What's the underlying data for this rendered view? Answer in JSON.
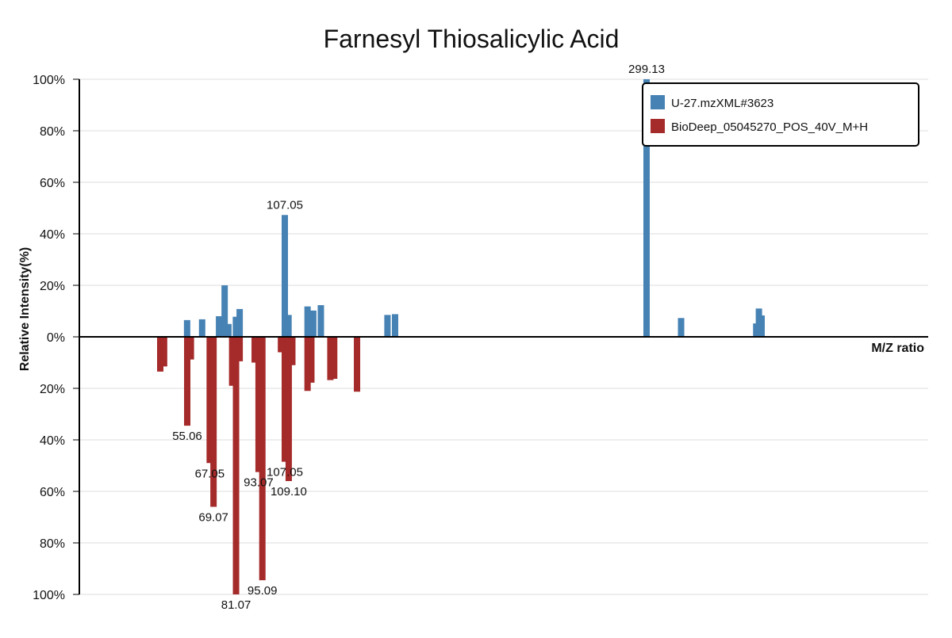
{
  "chart_data": {
    "type": "bar",
    "title": "Farnesyl Thiosalicylic Acid",
    "xlabel": "M/Z ratio",
    "ylabel": "Relative Intensity(%)",
    "ylim": [
      -100,
      100
    ],
    "y_ticks": [
      100,
      80,
      60,
      40,
      20,
      0,
      -20,
      -40,
      -60,
      -80,
      -100
    ],
    "y_tick_labels": [
      "100%",
      "80%",
      "60%",
      "40%",
      "20%",
      "0%",
      "20%",
      "40%",
      "60%",
      "80%",
      "100%"
    ],
    "xlim": [
      25,
      340
    ],
    "grid": true,
    "legend_position": "top-right",
    "series": [
      {
        "name": "U-27.mzXML#3623",
        "color": "#4682b4",
        "direction": "up",
        "peaks": [
          {
            "mz": 55.0,
            "value": 6.5
          },
          {
            "mz": 63.0,
            "value": 6.8
          },
          {
            "mz": 72.0,
            "value": 8.0
          },
          {
            "mz": 75.0,
            "value": 20.0
          },
          {
            "mz": 77.0,
            "value": 5.0
          },
          {
            "mz": 81.0,
            "value": 7.8
          },
          {
            "mz": 83.0,
            "value": 10.8
          },
          {
            "mz": 107.05,
            "value": 47.3,
            "label": "107.05"
          },
          {
            "mz": 109.0,
            "value": 8.5
          },
          {
            "mz": 119.0,
            "value": 11.8
          },
          {
            "mz": 122.0,
            "value": 10.2
          },
          {
            "mz": 126.0,
            "value": 12.3
          },
          {
            "mz": 161.0,
            "value": 8.5
          },
          {
            "mz": 165.0,
            "value": 8.8
          },
          {
            "mz": 299.13,
            "value": 100,
            "label": "299.13"
          },
          {
            "mz": 312.0,
            "value": 7.3
          },
          {
            "mz": 340.0,
            "value": 5.2
          },
          {
            "mz": 341.0,
            "value": 11.0
          },
          {
            "mz": 342.0,
            "value": 8.3
          }
        ]
      },
      {
        "name": "BioDeep_05045270_POS_40V_M+H",
        "color": "#a52a2a",
        "direction": "down",
        "peaks": [
          {
            "mz": 41.0,
            "value": 13.5
          },
          {
            "mz": 43.0,
            "value": 11.5
          },
          {
            "mz": 55.06,
            "value": 34.5,
            "label": "55.06"
          },
          {
            "mz": 57.0,
            "value": 8.8
          },
          {
            "mz": 67.05,
            "value": 49.0,
            "label": "67.05"
          },
          {
            "mz": 69.07,
            "value": 66.0,
            "label": "69.07"
          },
          {
            "mz": 79.0,
            "value": 19.0
          },
          {
            "mz": 81.07,
            "value": 100,
            "label": "81.07"
          },
          {
            "mz": 83.0,
            "value": 9.5
          },
          {
            "mz": 91.0,
            "value": 10.0
          },
          {
            "mz": 93.07,
            "value": 52.5,
            "label": "93.07"
          },
          {
            "mz": 95.09,
            "value": 94.5,
            "label": "95.09"
          },
          {
            "mz": 105.0,
            "value": 6.0
          },
          {
            "mz": 107.05,
            "value": 48.5,
            "label": "107.05"
          },
          {
            "mz": 109.1,
            "value": 56.0,
            "label": "109.10"
          },
          {
            "mz": 111.0,
            "value": 11.0
          },
          {
            "mz": 119.0,
            "value": 21.0
          },
          {
            "mz": 121.0,
            "value": 17.8
          },
          {
            "mz": 131.0,
            "value": 16.8
          },
          {
            "mz": 133.0,
            "value": 16.3
          },
          {
            "mz": 145.0,
            "value": 21.3
          }
        ]
      }
    ]
  }
}
